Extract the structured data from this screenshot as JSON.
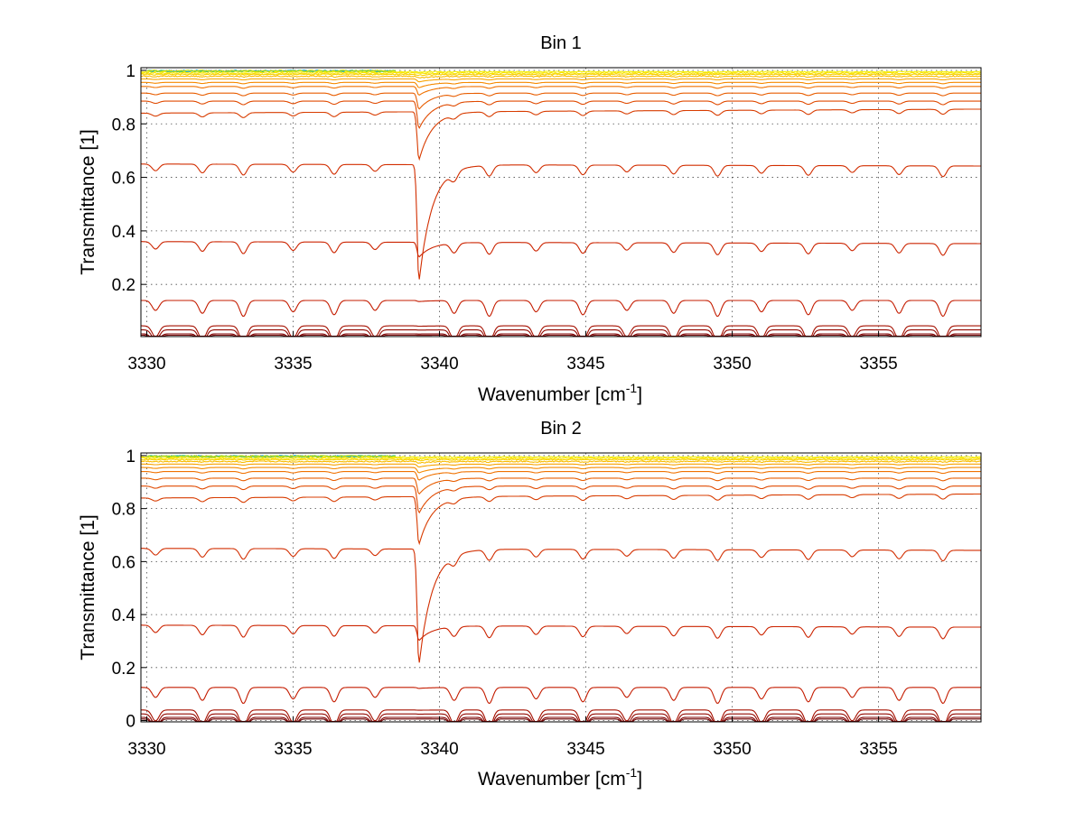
{
  "chart_data": [
    {
      "type": "line",
      "title": "Bin 1",
      "xlabel": "Wavenumber [cm",
      "xlabel_sup": "-1",
      "xlabel_end": "]",
      "ylabel": "Transmittance [1]",
      "xlim": [
        3329.8,
        3358.5
      ],
      "ylim": [
        0.005,
        1.01
      ],
      "xticks": [
        3330,
        3335,
        3340,
        3345,
        3350,
        3355
      ],
      "yticks": [
        0.2,
        0.4,
        0.6,
        0.8,
        1
      ],
      "ytick_labels": [
        "0.2",
        "0.4",
        "0.6",
        "0.8",
        "1"
      ],
      "grid": true,
      "series_baselines": [
        0.995,
        0.99,
        0.985,
        0.978,
        0.968,
        0.955,
        0.94,
        0.915,
        0.885,
        0.84,
        0.65,
        0.36,
        0.14,
        0.045,
        0.03,
        0.015,
        0.01
      ],
      "strong_line": {
        "x": 3339.3,
        "depth_fraction": 0.35
      },
      "weak_lines_x": [
        3330.3,
        3331.9,
        3333.3,
        3335.0,
        3336.4,
        3337.8,
        3340.5,
        3341.7,
        3343.3,
        3344.9,
        3346.4,
        3348.0,
        3349.5,
        3351.0,
        3352.6,
        3354.1,
        3355.7,
        3357.2
      ]
    },
    {
      "type": "line",
      "title": "Bin 2",
      "xlabel": "Wavenumber [cm",
      "xlabel_sup": "-1",
      "xlabel_end": "]",
      "ylabel": "Transmittance [1]",
      "xlim": [
        3329.8,
        3358.5
      ],
      "ylim": [
        -0.005,
        1.01
      ],
      "xticks": [
        3330,
        3335,
        3340,
        3345,
        3350,
        3355
      ],
      "yticks": [
        0,
        0.2,
        0.4,
        0.6,
        0.8,
        1
      ],
      "ytick_labels": [
        "0",
        "0.2",
        "0.4",
        "0.6",
        "0.8",
        "1"
      ],
      "grid": true,
      "series_baselines": [
        0.995,
        0.99,
        0.985,
        0.978,
        0.968,
        0.955,
        0.94,
        0.915,
        0.885,
        0.84,
        0.65,
        0.36,
        0.125,
        0.04,
        0.025,
        0.012,
        0.006
      ],
      "strong_line": {
        "x": 3339.3,
        "depth_fraction": 0.35
      },
      "weak_lines_x": [
        3330.3,
        3331.9,
        3333.3,
        3335.0,
        3336.4,
        3337.8,
        3340.5,
        3341.7,
        3343.3,
        3344.9,
        3346.4,
        3348.0,
        3349.5,
        3351.0,
        3352.6,
        3354.1,
        3355.7,
        3357.2
      ]
    }
  ],
  "colors": {
    "series": [
      "#f5f000",
      "#f7e200",
      "#f8d000",
      "#f9bb00",
      "#f7a300",
      "#f58a00",
      "#f07200",
      "#e85d00",
      "#e04a00",
      "#d83c00",
      "#d22e00",
      "#cc2400",
      "#c41c00",
      "#a51000",
      "#920800",
      "#800000",
      "#6a0000"
    ],
    "noise": [
      "#00a0e0",
      "#30c070",
      "#d0e000"
    ]
  }
}
